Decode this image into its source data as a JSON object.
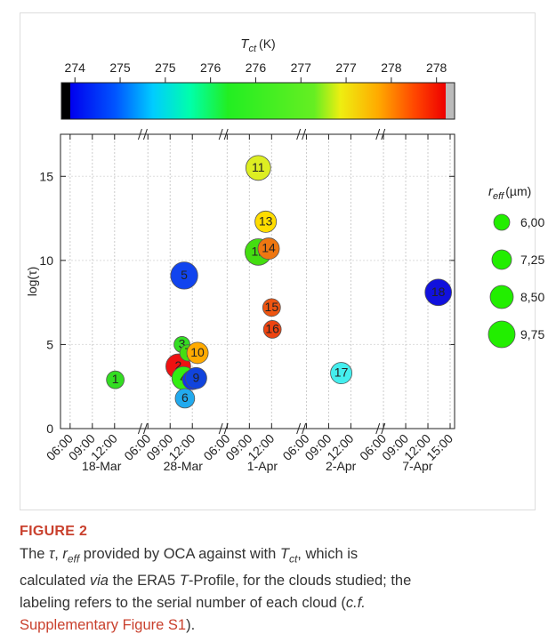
{
  "chart_data": {
    "type": "bubble",
    "colorbar": {
      "title": {
        "symbol": "T",
        "sub": "ct",
        "unit": "(K)"
      },
      "clim": [
        273.85,
        278.2
      ],
      "ticks": [
        {
          "value": 274.0,
          "label": "274"
        },
        {
          "value": 274.5,
          "label": "275"
        },
        {
          "value": 275.0,
          "label": "275"
        },
        {
          "value": 275.5,
          "label": "276"
        },
        {
          "value": 276.0,
          "label": "276"
        },
        {
          "value": 276.5,
          "label": "277"
        },
        {
          "value": 277.0,
          "label": "277"
        },
        {
          "value": 277.5,
          "label": "278"
        },
        {
          "value": 278.0,
          "label": "278"
        }
      ]
    },
    "y_label": "log(τ)",
    "ylim": [
      0,
      17.5
    ],
    "yticks": [
      0,
      5,
      10,
      15
    ],
    "grid": true,
    "segments": [
      {
        "date": "18-Mar",
        "xlim": [
          4.7,
          15.8
        ],
        "xticks": [
          {
            "value": 6,
            "label": "06:00"
          },
          {
            "value": 9,
            "label": "09:00"
          },
          {
            "value": 12,
            "label": "12:00"
          }
        ]
      },
      {
        "date": "28-Mar",
        "xlim": [
          5.3,
          16.2
        ],
        "xticks": [
          {
            "value": 6,
            "label": "06:00"
          },
          {
            "value": 9,
            "label": "09:00"
          },
          {
            "value": 12,
            "label": "12:00"
          }
        ]
      },
      {
        "date": "1-Apr",
        "xlim": [
          5.5,
          16.0
        ],
        "xticks": [
          {
            "value": 6,
            "label": "06:00"
          },
          {
            "value": 9,
            "label": "09:00"
          },
          {
            "value": 12,
            "label": "12:00"
          }
        ]
      },
      {
        "date": "2-Apr",
        "xlim": [
          5.3,
          16.0
        ],
        "xticks": [
          {
            "value": 6,
            "label": "06:00"
          },
          {
            "value": 9,
            "label": "09:00"
          },
          {
            "value": 12,
            "label": "12:00"
          }
        ]
      },
      {
        "date": "7-Apr",
        "xlim": [
          5.6,
          15.6
        ],
        "xticks": [
          {
            "value": 6,
            "label": "06:00"
          },
          {
            "value": 9,
            "label": "09:00"
          },
          {
            "value": 12,
            "label": "12:00"
          },
          {
            "value": 15,
            "label": "15:00"
          }
        ]
      }
    ],
    "points": [
      {
        "label": "1",
        "date": "18-Mar",
        "hour": 12.1,
        "log_tau": 2.9,
        "r_eff": 6.6,
        "color": "#33dd22"
      },
      {
        "label": "2",
        "date": "28-Mar",
        "hour": 10.1,
        "log_tau": 3.7,
        "r_eff": 9.1,
        "color": "#ee1111"
      },
      {
        "label": "3",
        "date": "28-Mar",
        "hour": 10.6,
        "log_tau": 5.0,
        "r_eff": 6.0,
        "color": "#33dd22"
      },
      {
        "label": "4",
        "date": "28-Mar",
        "hour": 10.8,
        "log_tau": 3.0,
        "r_eff": 8.5,
        "color": "#33ee11"
      },
      {
        "label": "5",
        "date": "28-Mar",
        "hour": 10.9,
        "log_tau": 9.1,
        "r_eff": 9.9,
        "color": "#1144ee"
      },
      {
        "label": "6",
        "date": "28-Mar",
        "hour": 11.0,
        "log_tau": 1.8,
        "r_eff": 7.2,
        "color": "#22aaee"
      },
      {
        "label": "7",
        "date": "28-Mar",
        "hour": 11.4,
        "log_tau": 4.5,
        "r_eff": 6.1,
        "color": "#44dd11"
      },
      {
        "label": "8",
        "date": "28-Mar",
        "hour": 12.0,
        "log_tau": 2.9,
        "r_eff": 7.3,
        "color": "#1133ee"
      },
      {
        "label": "9",
        "date": "28-Mar",
        "hour": 12.5,
        "log_tau": 3.0,
        "r_eff": 7.9,
        "color": "#1144dd"
      },
      {
        "label": "10",
        "date": "28-Mar",
        "hour": 12.7,
        "log_tau": 4.5,
        "r_eff": 7.9,
        "color": "#ffaa00"
      },
      {
        "label": "11",
        "date": "1-Apr",
        "hour": 10.2,
        "log_tau": 15.5,
        "r_eff": 9.1,
        "color": "#ddee22"
      },
      {
        "label": "12",
        "date": "1-Apr",
        "hour": 10.2,
        "log_tau": 10.5,
        "r_eff": 9.7,
        "color": "#44dd11"
      },
      {
        "label": "13",
        "date": "1-Apr",
        "hour": 11.2,
        "log_tau": 12.3,
        "r_eff": 7.9,
        "color": "#ffdd00"
      },
      {
        "label": "14",
        "date": "1-Apr",
        "hour": 11.6,
        "log_tau": 10.7,
        "r_eff": 7.9,
        "color": "#ee7711"
      },
      {
        "label": "15",
        "date": "1-Apr",
        "hour": 12.0,
        "log_tau": 7.2,
        "r_eff": 6.6,
        "color": "#ee5511"
      },
      {
        "label": "16",
        "date": "1-Apr",
        "hour": 12.1,
        "log_tau": 5.9,
        "r_eff": 6.6,
        "color": "#ee4411"
      },
      {
        "label": "17",
        "date": "2-Apr",
        "hour": 10.7,
        "log_tau": 3.3,
        "r_eff": 7.9,
        "color": "#44eeee"
      },
      {
        "label": "18",
        "date": "7-Apr",
        "hour": 13.4,
        "log_tau": 8.1,
        "r_eff": 9.7,
        "color": "#1111dd"
      }
    ],
    "size_legend": {
      "title": {
        "symbol": "r",
        "sub": "eff",
        "unit": "(µm)"
      },
      "values": [
        6.0,
        7.25,
        8.5,
        9.75
      ],
      "value_labels": [
        "6,00",
        "7,25",
        "8,50",
        "9,75"
      ],
      "color": "#22ee00"
    }
  },
  "caption": {
    "label": "FIGURE 2",
    "lines": [
      [
        {
          "text": "The ",
          "style": "plain"
        },
        {
          "text": "τ",
          "style": "italic"
        },
        {
          "text": ", ",
          "style": "plain"
        },
        {
          "text": "r",
          "style": "italic"
        },
        {
          "text": "eff",
          "style": "italic-sub"
        },
        {
          "text": " provided by OCA against with ",
          "style": "plain"
        },
        {
          "text": "T",
          "style": "italic"
        },
        {
          "text": "ct",
          "style": "italic-sub"
        },
        {
          "text": ", which is",
          "style": "plain"
        }
      ],
      [
        {
          "text": "calculated ",
          "style": "plain"
        },
        {
          "text": "via",
          "style": "italic"
        },
        {
          "text": " the ERA5 ",
          "style": "plain"
        },
        {
          "text": "T",
          "style": "italic"
        },
        {
          "text": "-Profile, for the clouds studied; the",
          "style": "plain"
        }
      ],
      [
        {
          "text": "labeling refers to the serial number of each cloud (",
          "style": "plain"
        },
        {
          "text": "c.f.",
          "style": "italic"
        }
      ],
      [
        {
          "text": "Supplementary Figure S1",
          "style": "link"
        },
        {
          "text": ").",
          "style": "plain"
        }
      ]
    ]
  }
}
